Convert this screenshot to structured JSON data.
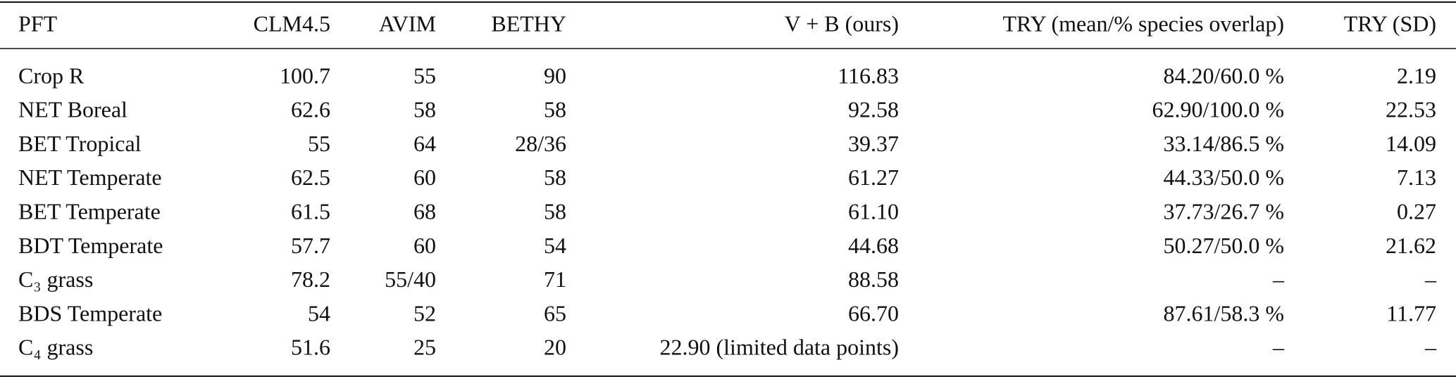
{
  "table": {
    "header": [
      "PFT",
      "CLM4.5",
      "AVIM",
      "BETHY",
      "V + B (ours)",
      "TRY (mean/% species overlap)",
      "TRY (SD)"
    ],
    "rows": [
      [
        "Crop R",
        "100.7",
        "55",
        "90",
        "116.83",
        "84.20/60.0 %",
        "2.19"
      ],
      [
        "NET Boreal",
        "62.6",
        "58",
        "58",
        "92.58",
        "62.90/100.0 %",
        "22.53"
      ],
      [
        "BET Tropical",
        "55",
        "64",
        "28/36",
        "39.37",
        "33.14/86.5 %",
        "14.09"
      ],
      [
        "NET Temperate",
        "62.5",
        "60",
        "58",
        "61.27",
        "44.33/50.0 %",
        "7.13"
      ],
      [
        "BET Temperate",
        "61.5",
        "68",
        "58",
        "61.10",
        "37.73/26.7 %",
        "0.27"
      ],
      [
        "BDT Temperate",
        "57.7",
        "60",
        "54",
        "44.68",
        "50.27/50.0 %",
        "21.62"
      ],
      [
        "C₃ grass",
        "78.2",
        "55/40",
        "71",
        "88.58",
        "–",
        "–"
      ],
      [
        "BDS Temperate",
        "54",
        "52",
        "65",
        "66.70",
        "87.61/58.3 %",
        "11.77"
      ],
      [
        "C₄ grass",
        "51.6",
        "25",
        "20",
        "22.90 (limited data points)",
        "–",
        "–"
      ]
    ]
  }
}
